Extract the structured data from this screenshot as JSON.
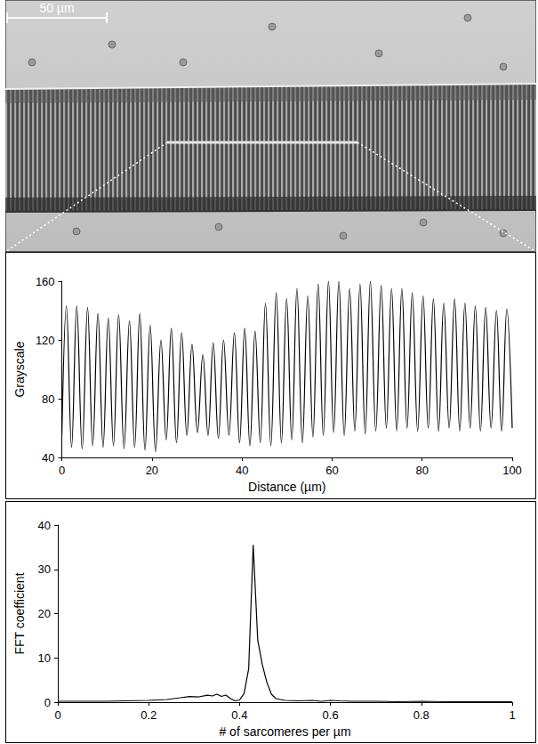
{
  "image": {
    "scale_bar_label": "50 µm"
  },
  "chart_data": [
    {
      "type": "line",
      "xlabel": "Distance (µm)",
      "ylabel": "Grayscale",
      "x": [
        0,
        1.0,
        2.15,
        3.3,
        4.5,
        5.7,
        6.85,
        8.0,
        9.15,
        10.3,
        11.45,
        12.6,
        13.8,
        15.0,
        16.15,
        17.3,
        18.45,
        19.6,
        20.8,
        22.0,
        23.15,
        24.3,
        25.45,
        26.6,
        27.75,
        28.9,
        30.1,
        31.3,
        32.45,
        33.6,
        34.75,
        35.9,
        37.1,
        38.3,
        39.45,
        40.6,
        41.75,
        42.9,
        44.05,
        45.2,
        46.4,
        47.6,
        48.75,
        49.9,
        51.05,
        52.2,
        53.4,
        54.6,
        55.75,
        56.9,
        58.05,
        59.2,
        60.35,
        61.5,
        62.7,
        63.9,
        65.05,
        66.2,
        67.35,
        68.5,
        69.7,
        70.9,
        72.05,
        73.2,
        74.35,
        75.5,
        76.65,
        77.8,
        79.0,
        80.2,
        81.35,
        82.5,
        83.65,
        84.8,
        86.0,
        87.2,
        88.35,
        89.5,
        90.65,
        91.8,
        92.95,
        94.1,
        95.3,
        96.5,
        97.65,
        98.8,
        100
      ],
      "values": [
        55,
        143,
        47,
        143,
        46,
        142,
        48,
        138,
        47,
        135,
        48,
        137,
        46,
        133,
        47,
        138,
        45,
        130,
        44,
        120,
        52,
        128,
        50,
        125,
        55,
        117,
        57,
        110,
        55,
        118,
        53,
        120,
        55,
        125,
        50,
        128,
        48,
        126,
        50,
        145,
        48,
        152,
        50,
        148,
        52,
        155,
        50,
        150,
        54,
        158,
        55,
        160,
        57,
        160,
        55,
        155,
        58,
        158,
        56,
        160,
        58,
        157,
        60,
        155,
        58,
        155,
        60,
        152,
        58,
        150,
        60,
        148,
        58,
        145,
        60,
        148,
        58,
        145,
        60,
        143,
        58,
        142,
        60,
        140,
        58,
        141,
        60
      ],
      "color": "#000000",
      "line_style": "smooth",
      "xlim": [
        0,
        100
      ],
      "xticks": [
        0,
        20,
        40,
        60,
        80,
        100
      ],
      "ylim": [
        40,
        160
      ],
      "yticks": [
        40,
        80,
        120,
        160
      ],
      "grid": false
    },
    {
      "type": "line",
      "xlabel": "# of sarcomeres per µm",
      "ylabel": "FFT coefficient",
      "x": [
        0,
        0.02,
        0.05,
        0.1,
        0.15,
        0.2,
        0.24,
        0.27,
        0.29,
        0.31,
        0.33,
        0.34,
        0.35,
        0.36,
        0.37,
        0.38,
        0.39,
        0.4,
        0.41,
        0.42,
        0.43,
        0.44,
        0.45,
        0.46,
        0.47,
        0.48,
        0.5,
        0.53,
        0.56,
        0.58,
        0.6,
        0.62,
        0.65,
        0.7,
        0.75,
        0.8,
        0.85,
        0.9,
        0.95,
        1
      ],
      "values": [
        0.2,
        0.2,
        0.2,
        0.2,
        0.3,
        0.4,
        0.6,
        1.0,
        1.3,
        1.2,
        1.6,
        1.4,
        1.8,
        1.3,
        1.6,
        0.8,
        0.3,
        0.5,
        2.0,
        7.5,
        35.5,
        14,
        8.5,
        4.5,
        1.8,
        0.8,
        0.4,
        0.3,
        0.4,
        0.2,
        0.4,
        0.3,
        0.2,
        0.2,
        0.1,
        0.2,
        0.1,
        0.1,
        0.1,
        0.1
      ],
      "color": "#000000",
      "line_style": "solid",
      "xlim": [
        0,
        1
      ],
      "xticks": [
        0,
        0.2,
        0.4,
        0.6,
        0.8,
        1
      ],
      "ylim": [
        0,
        40
      ],
      "yticks": [
        0,
        10,
        20,
        30,
        40
      ],
      "grid": false
    }
  ]
}
